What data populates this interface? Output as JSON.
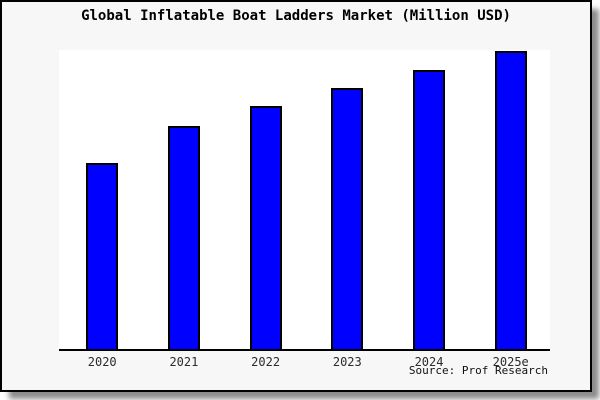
{
  "figure": {
    "background": "#f7f7f7",
    "plot_background": "#ffffff",
    "frame_border_color": "#000000",
    "shadow_color": "#8a8a8a"
  },
  "chart_data": {
    "type": "bar",
    "title": "Global Inflatable Boat Ladders Market (Million USD)",
    "categories": [
      "2020",
      "2021",
      "2022",
      "2023",
      "2024",
      "2025e"
    ],
    "values": [
      62.8,
      75.1,
      81.5,
      87.7,
      93.7,
      100
    ],
    "value_note": "No y-axis ticks or labels are visible; values are relative bar heights estimated from pixels, normalized to 2025e = 100",
    "ylim": [
      0,
      100.3
    ],
    "xlabel": "",
    "ylabel": "",
    "grid": false,
    "legend": false,
    "bar_color": "#0000ff",
    "bar_edge_color": "#000000",
    "source": "Source: Prof Research"
  }
}
